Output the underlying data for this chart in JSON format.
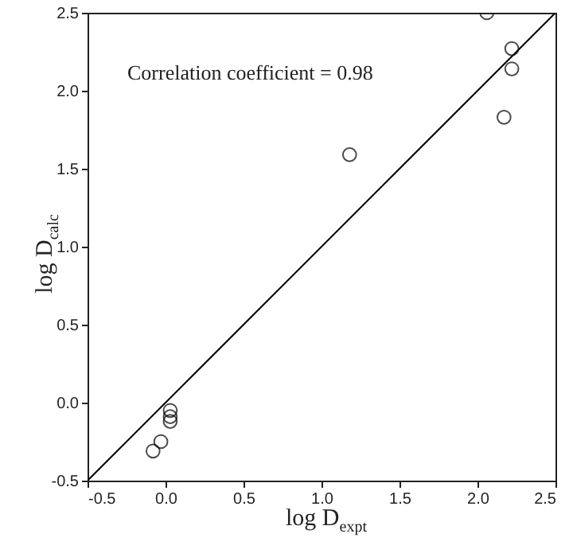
{
  "chart_data": {
    "type": "scatter",
    "xlabel": "log D$_{expt}$",
    "ylabel": "log D$_{calc}$",
    "annotations": [
      "Correlation coefficient = 0.98"
    ],
    "xlim": [
      -0.5,
      2.5
    ],
    "ylim": [
      -0.5,
      2.5
    ],
    "xticks": [
      -0.5,
      {
        "value": 0,
        "label": "0.0"
      },
      0.5,
      {
        "value": 1,
        "label": "1.0"
      },
      1.5,
      {
        "value": 2,
        "label": "2.0"
      },
      2.5
    ],
    "yticks": [
      -0.5,
      {
        "value": 0,
        "label": "0.0"
      },
      0.5,
      {
        "value": 1,
        "label": "1.0"
      },
      1.5,
      {
        "value": 2,
        "label": "2.0"
      },
      2.5
    ],
    "grid": false,
    "marker": "circle",
    "series": [
      {
        "color": "#000000",
        "x": [
          2.06,
          2.22,
          2.22,
          2.17,
          1.18,
          0.03,
          0.03,
          0.03,
          -0.03,
          -0.08
        ],
        "values": [
          2.5,
          2.27,
          2.14,
          1.83,
          1.59,
          -0.05,
          -0.09,
          -0.12,
          -0.25,
          -0.31
        ]
      },
      {
        "type": "line",
        "color": "#000000",
        "line_style": "solid",
        "marker": "none",
        "x": [
          -0.5,
          2.5
        ],
        "values": [
          -0.5,
          2.5
        ]
      }
    ]
  }
}
